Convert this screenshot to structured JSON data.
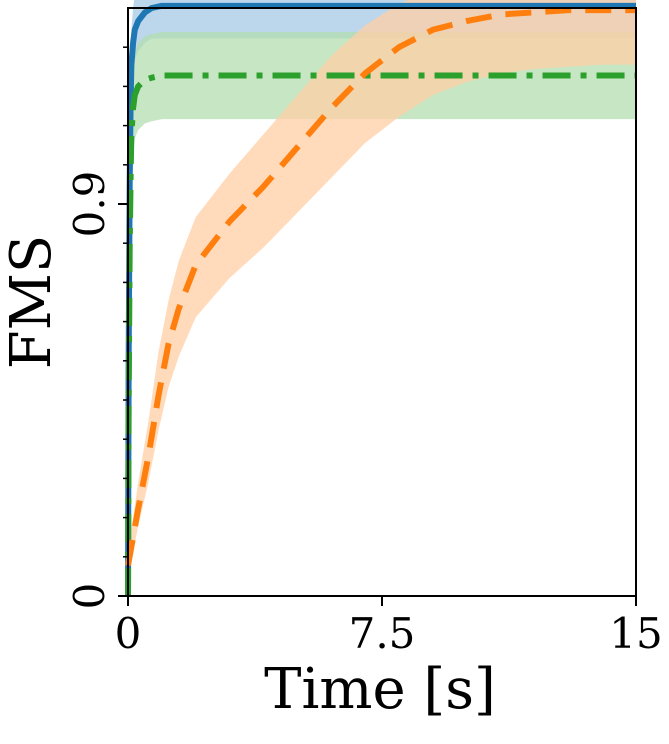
{
  "chart_data": {
    "type": "line",
    "xlabel": "Time [s]",
    "ylabel": "FMS",
    "xlim": [
      0,
      15
    ],
    "ylim": [
      0,
      1.35
    ],
    "xticks": [
      {
        "value": 0,
        "label": "0"
      },
      {
        "value": 7.5,
        "label": "7.5"
      },
      {
        "value": 15,
        "label": "15"
      }
    ],
    "yticks": [
      {
        "value": 0,
        "label": "0"
      },
      {
        "value": 0.9,
        "label": "0.9"
      }
    ],
    "y_minor_ticks": [
      0.09,
      0.18,
      0.27,
      0.36,
      0.45,
      0.54,
      0.63,
      0.72,
      0.81,
      0.99,
      1.08,
      1.17,
      1.26
    ],
    "grid": false,
    "series": [
      {
        "color": "#1f77b4",
        "band_color": "#a6c8e6",
        "dash": "solid",
        "x": [
          0,
          0.02,
          0.05,
          0.08,
          0.1,
          0.15,
          0.2,
          0.3,
          0.5,
          0.7,
          1.0,
          2,
          5,
          10,
          15
        ],
        "y": [
          0,
          0.55,
          0.95,
          1.15,
          1.22,
          1.27,
          1.3,
          1.32,
          1.34,
          1.35,
          1.355,
          1.355,
          1.355,
          1.355,
          1.355
        ],
        "lower": [
          0,
          0.5,
          0.85,
          1.05,
          1.15,
          1.2,
          1.23,
          1.25,
          1.27,
          1.28,
          1.28,
          1.28,
          1.28,
          1.28,
          1.28
        ],
        "upper": [
          0,
          0.6,
          1.05,
          1.25,
          1.3,
          1.35,
          1.38,
          1.4,
          1.41,
          1.415,
          1.415,
          1.415,
          1.415,
          1.415,
          1.415
        ]
      },
      {
        "color": "#2ca02c",
        "band_color": "#b4deb0",
        "dash": "dashdot",
        "x": [
          0,
          0.02,
          0.05,
          0.08,
          0.1,
          0.15,
          0.2,
          0.3,
          0.5,
          0.7,
          1.0,
          2,
          5,
          10,
          15
        ],
        "y": [
          0,
          0.45,
          0.8,
          0.98,
          1.06,
          1.12,
          1.15,
          1.17,
          1.185,
          1.19,
          1.195,
          1.195,
          1.195,
          1.195,
          1.195
        ],
        "lower": [
          0,
          0.4,
          0.72,
          0.88,
          0.96,
          1.02,
          1.05,
          1.07,
          1.085,
          1.09,
          1.095,
          1.095,
          1.095,
          1.095,
          1.095
        ],
        "upper": [
          0,
          0.5,
          0.88,
          1.08,
          1.16,
          1.22,
          1.25,
          1.27,
          1.285,
          1.29,
          1.295,
          1.295,
          1.295,
          1.295,
          1.295
        ]
      },
      {
        "color": "#ff7f0e",
        "band_color": "#ffcfa6",
        "dash": "dashed",
        "x": [
          0,
          0.3,
          0.6,
          0.9,
          1.2,
          1.5,
          2.0,
          3.0,
          4.0,
          5.0,
          6.0,
          7.0,
          8.0,
          9.0,
          10.0,
          11.0,
          12.0,
          13.0,
          14.0,
          15.0
        ],
        "y": [
          0.07,
          0.2,
          0.32,
          0.46,
          0.58,
          0.66,
          0.76,
          0.86,
          0.94,
          1.03,
          1.12,
          1.2,
          1.26,
          1.3,
          1.32,
          1.335,
          1.34,
          1.345,
          1.345,
          1.345
        ],
        "lower": [
          0.04,
          0.16,
          0.26,
          0.38,
          0.48,
          0.55,
          0.64,
          0.73,
          0.8,
          0.88,
          0.96,
          1.04,
          1.1,
          1.15,
          1.18,
          1.2,
          1.21,
          1.215,
          1.22,
          1.22
        ],
        "upper": [
          0.1,
          0.26,
          0.4,
          0.56,
          0.68,
          0.77,
          0.87,
          0.97,
          1.06,
          1.15,
          1.24,
          1.31,
          1.36,
          1.39,
          1.405,
          1.41,
          1.415,
          1.42,
          1.42,
          1.42
        ]
      }
    ]
  }
}
